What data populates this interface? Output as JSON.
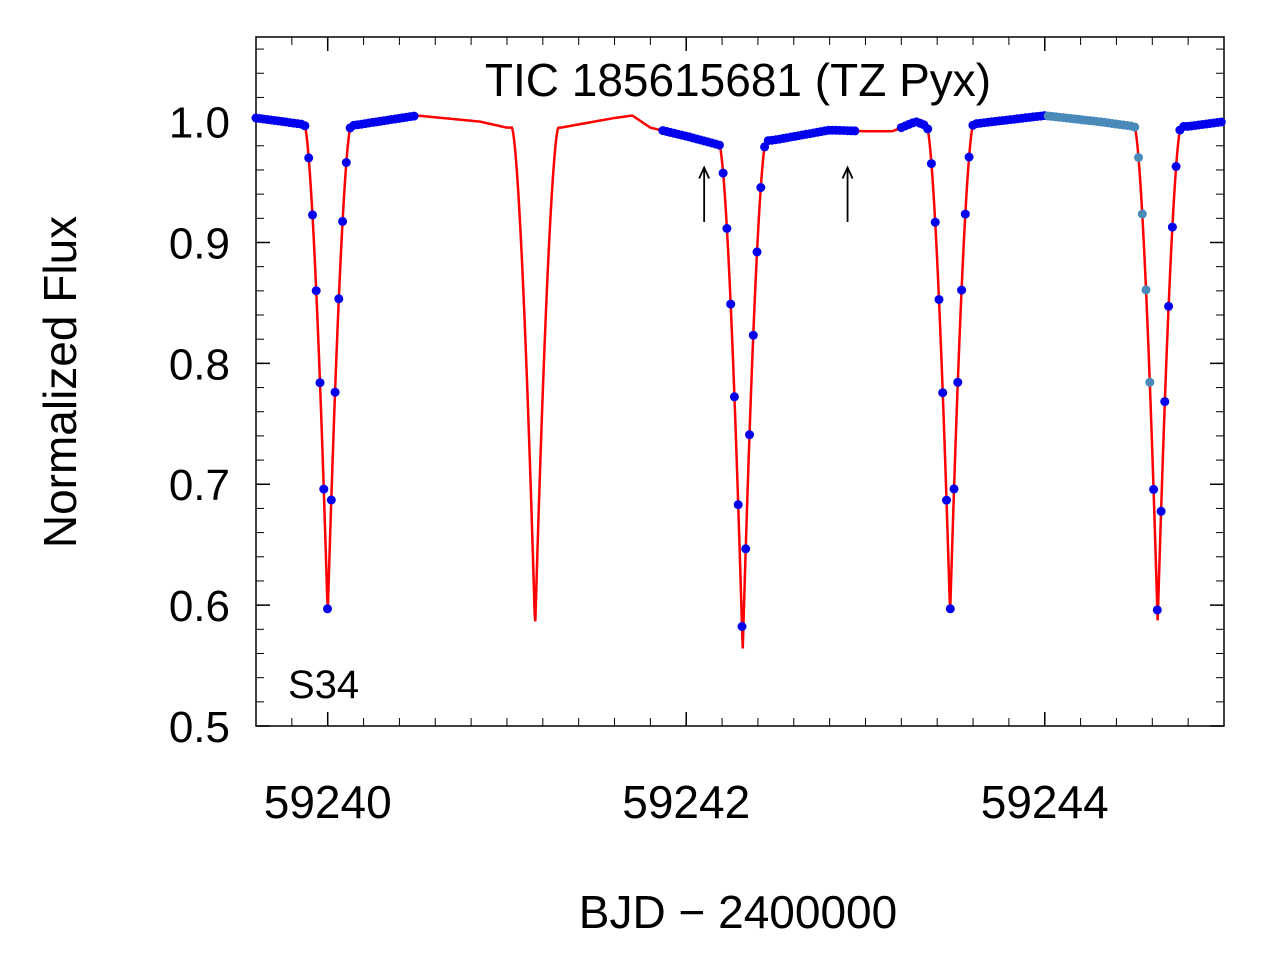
{
  "chart_data": {
    "type": "scatter",
    "title": "TIC 185615681 (TZ Pyx)",
    "xlabel": "BJD − 2400000",
    "ylabel": "Normalized Flux",
    "annotation": "S34",
    "xlim": [
      59239.6,
      59245.0
    ],
    "ylim": [
      0.5,
      1.07
    ],
    "x_ticks": [
      59240,
      59242,
      59244
    ],
    "x_tick_labels": [
      "59240",
      "59242",
      "59244"
    ],
    "y_ticks": [
      0.5,
      0.6,
      0.7,
      0.8,
      0.9,
      1.0
    ],
    "y_tick_labels": [
      "0.5",
      "0.6",
      "0.7",
      "0.8",
      "0.9",
      "1.0"
    ],
    "colors": {
      "data": "#0000ee",
      "data_alt": "#4a8ab8",
      "model": "#ff0000",
      "axis": "#000000"
    },
    "eclipses": [
      {
        "center": 59240.0,
        "depth": 0.405,
        "halfwidth": 0.13
      },
      {
        "center": 59241.157,
        "depth": 0.415,
        "halfwidth": 0.13
      },
      {
        "center": 59242.315,
        "depth": 0.42,
        "halfwidth": 0.13
      },
      {
        "center": 59243.472,
        "depth": 0.405,
        "halfwidth": 0.13
      },
      {
        "center": 59244.63,
        "depth": 0.41,
        "halfwidth": 0.13
      }
    ],
    "baseline": [
      [
        59239.6,
        1.003
      ],
      [
        59239.9,
        0.997
      ],
      [
        59240.15,
        0.997
      ],
      [
        59240.5,
        1.005
      ],
      [
        59240.85,
        1.0
      ],
      [
        59241.0,
        0.995
      ],
      [
        59241.3,
        0.995
      ],
      [
        59241.6,
        1.003
      ],
      [
        59241.7,
        1.005
      ],
      [
        59241.8,
        0.995
      ],
      [
        59242.0,
        0.988
      ],
      [
        59242.2,
        0.98
      ],
      [
        59242.5,
        0.985
      ],
      [
        59242.8,
        0.993
      ],
      [
        59243.0,
        0.992
      ],
      [
        59243.15,
        0.992
      ],
      [
        59243.28,
        1.0
      ],
      [
        59243.35,
        0.996
      ],
      [
        59243.6,
        0.998
      ],
      [
        59244.0,
        1.005
      ],
      [
        59244.3,
        1.0
      ],
      [
        59244.5,
        0.996
      ],
      [
        59244.8,
        0.996
      ],
      [
        59245.0,
        1.0
      ]
    ],
    "data_segments": [
      {
        "name": "sector-34-segment-1",
        "x_range": [
          59239.6,
          59240.5
        ],
        "step": 0.021
      },
      {
        "name": "sector-34-segment-2",
        "x_range": [
          59241.87,
          59242.95
        ],
        "step": 0.021
      },
      {
        "name": "sector-34-segment-3",
        "x_range": [
          59243.2,
          59245.0
        ],
        "step": 0.021
      }
    ],
    "alt_data_range": [
      59244.0,
      59244.6
    ],
    "arrows": [
      {
        "x": 59242.1,
        "y_tail": 0.917,
        "y_head": 0.962
      },
      {
        "x": 59242.9,
        "y_tail": 0.917,
        "y_head": 0.962
      }
    ]
  }
}
